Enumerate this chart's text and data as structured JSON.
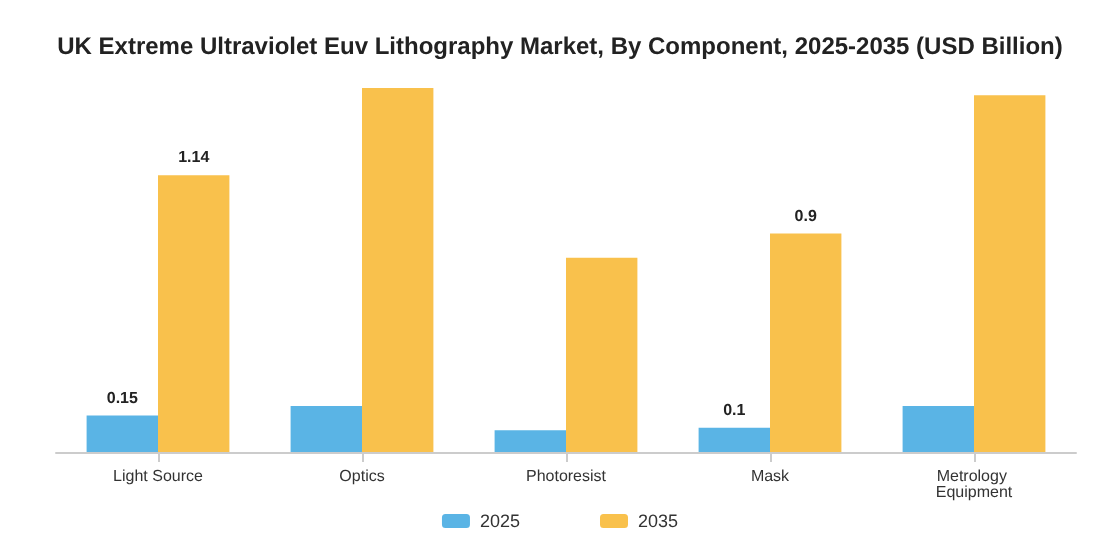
{
  "chart_data": {
    "type": "bar",
    "title": "UK Extreme Ultraviolet Euv Lithography Market, By Component, 2025-2035 (USD Billion)",
    "categories": [
      "Light Source",
      "Optics",
      "Photoresist",
      "Mask",
      "Metrology Equipment"
    ],
    "series": [
      {
        "name": "2025",
        "color": "#5ab4e5",
        "values": [
          0.15,
          0.19,
          0.09,
          0.1,
          0.19
        ],
        "value_labels": [
          "0.15",
          null,
          null,
          "0.1",
          null
        ]
      },
      {
        "name": "2035",
        "color": "#f9c14c",
        "values": [
          1.14,
          1.5,
          0.8,
          0.9,
          1.47
        ],
        "value_labels": [
          "1.14",
          null,
          null,
          "0.9",
          null
        ]
      }
    ],
    "legend": "bottom"
  }
}
